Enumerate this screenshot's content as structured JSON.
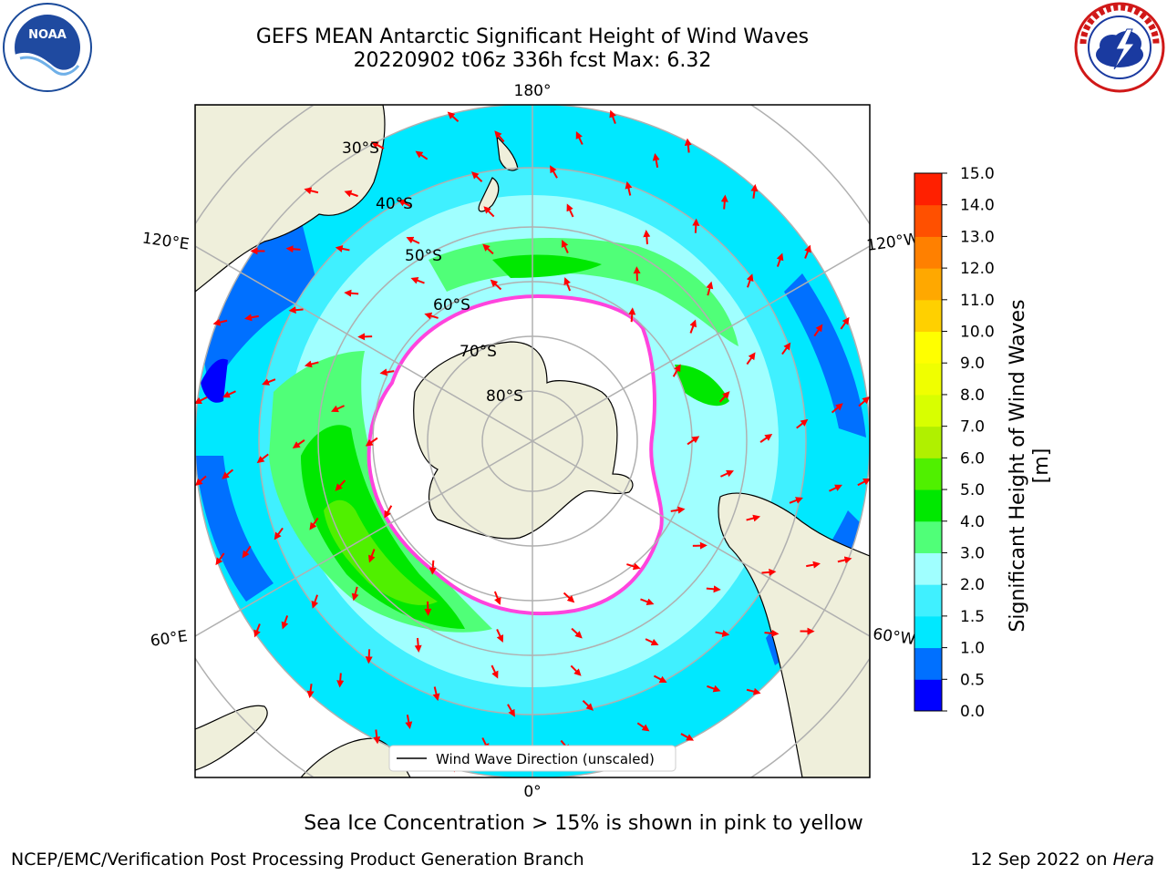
{
  "header": {
    "title_line1": "GEFS MEAN Antarctic Significant Height of Wind Waves",
    "title_line2": "20220902 t06z 336h fcst   Max: 6.32"
  },
  "logos": {
    "left": {
      "name": "noaa-logo",
      "text": "NOAA",
      "ring_text": "NATIONAL OCEANIC AND ATMOSPHERIC ADMINISTRATION · U.S. DEPARTMENT OF COMMERCE"
    },
    "right": {
      "name": "nws-logo",
      "ring_text": "NATIONAL WEATHER SERVICE"
    }
  },
  "map": {
    "projection": "south-polar-stereographic",
    "longitude_labels": [
      "180°",
      "120°E",
      "120°W",
      "60°E",
      "60°W",
      "0°"
    ],
    "latitude_labels": [
      "30°S",
      "40°S",
      "50°S",
      "60°S",
      "70°S",
      "80°S"
    ],
    "legend_label": "Wind Wave Direction (unscaled)",
    "colors": {
      "ocean_missing": "#ffffff",
      "land": "#efefdb",
      "coast": "#000000",
      "grid": "#b0b0b0",
      "arrow": "#ff0000",
      "sea_ice": "#ff44dd"
    },
    "arrow_direction_note": "Arrows point generally northward/away from Antarctica (outward from pole)"
  },
  "colorbar": {
    "label": "Significant Height of Wind Waves [m]",
    "ticks": [
      "0.0",
      "0.5",
      "1.0",
      "1.5",
      "2.0",
      "3.0",
      "4.0",
      "5.0",
      "6.0",
      "7.0",
      "8.0",
      "9.0",
      "10.0",
      "11.0",
      "12.0",
      "13.0",
      "14.0",
      "15.0"
    ],
    "colors": [
      "#0000ff",
      "#0070ff",
      "#00e8ff",
      "#40f0ff",
      "#a0ffff",
      "#50ff78",
      "#00e800",
      "#50f000",
      "#b0f000",
      "#d8ff00",
      "#f0ff00",
      "#ffff00",
      "#ffd000",
      "#ffa800",
      "#ff8000",
      "#ff5000",
      "#ff2000"
    ]
  },
  "footer": {
    "caption": "Sea Ice Concentration > 15% is shown in pink to yellow",
    "credit": "NCEP/EMC/Verification Post Processing Product Generation Branch",
    "date_prefix": "12 Sep 2022 on ",
    "date_host": "Hera"
  }
}
